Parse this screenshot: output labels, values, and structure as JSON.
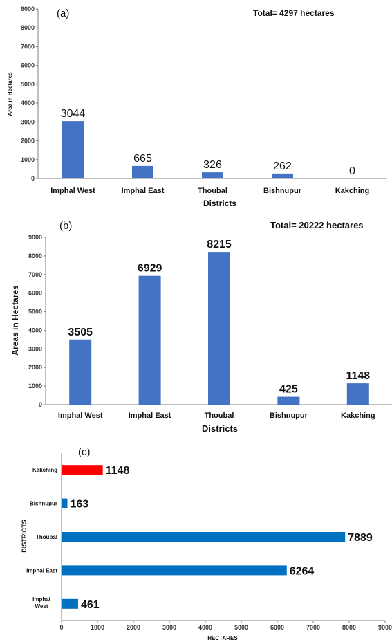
{
  "chart_data": [
    {
      "type": "bar",
      "panel_label": "(a)",
      "annotation": "Total= 4297 hectares",
      "categories": [
        "Imphal West",
        "Imphal East",
        "Thoubal",
        "Bishnupur",
        "Kakching"
      ],
      "values": [
        3044,
        665,
        326,
        262,
        0
      ],
      "data_labels": [
        "3044",
        "665",
        "326",
        "262",
        "0"
      ],
      "xlabel": "Districts",
      "ylabel": "Area in Hectares",
      "ylim": [
        0,
        9000
      ],
      "yticks": [
        "0",
        "1000",
        "2000",
        "3000",
        "4000",
        "5000",
        "6000",
        "7000",
        "8000",
        "9000"
      ],
      "bar_color": "#4472c4",
      "grid": false
    },
    {
      "type": "bar",
      "panel_label": "(b)",
      "annotation": "Total= 20222 hectares",
      "categories": [
        "Imphal West",
        "Imphal East",
        "Thoubal",
        "Bishnupur",
        "Kakching"
      ],
      "values": [
        3505,
        6929,
        8215,
        425,
        1148
      ],
      "data_labels": [
        "3505",
        "6929",
        "8215",
        "425",
        "1148"
      ],
      "xlabel": "Districts",
      "ylabel": "Areas in Hectares",
      "ylim": [
        0,
        9000
      ],
      "yticks": [
        "0",
        "1000",
        "2000",
        "3000",
        "4000",
        "5000",
        "6000",
        "7000",
        "8000",
        "9000"
      ],
      "bar_color": "#4472c4",
      "grid": false
    },
    {
      "type": "bar",
      "orientation": "horizontal",
      "panel_label": "(c)",
      "categories": [
        "Kakching",
        "Bishnupur",
        "Thoubal",
        "Imphal East",
        "Imphal West"
      ],
      "values": [
        1148,
        163,
        7889,
        6264,
        461
      ],
      "data_labels": [
        "1148",
        "163",
        "7889",
        "6264",
        "461"
      ],
      "bar_colors": [
        "#ff0000",
        "#0070c0",
        "#0070c0",
        "#0070c0",
        "#0070c0"
      ],
      "xlabel": "HECTARES",
      "ylabel": "DISTRICTS",
      "xlim": [
        0,
        9000
      ],
      "xticks": [
        "0",
        "1000",
        "2000",
        "3000",
        "4000",
        "5000",
        "6000",
        "7000",
        "8000",
        "9000"
      ],
      "grid": false
    }
  ]
}
